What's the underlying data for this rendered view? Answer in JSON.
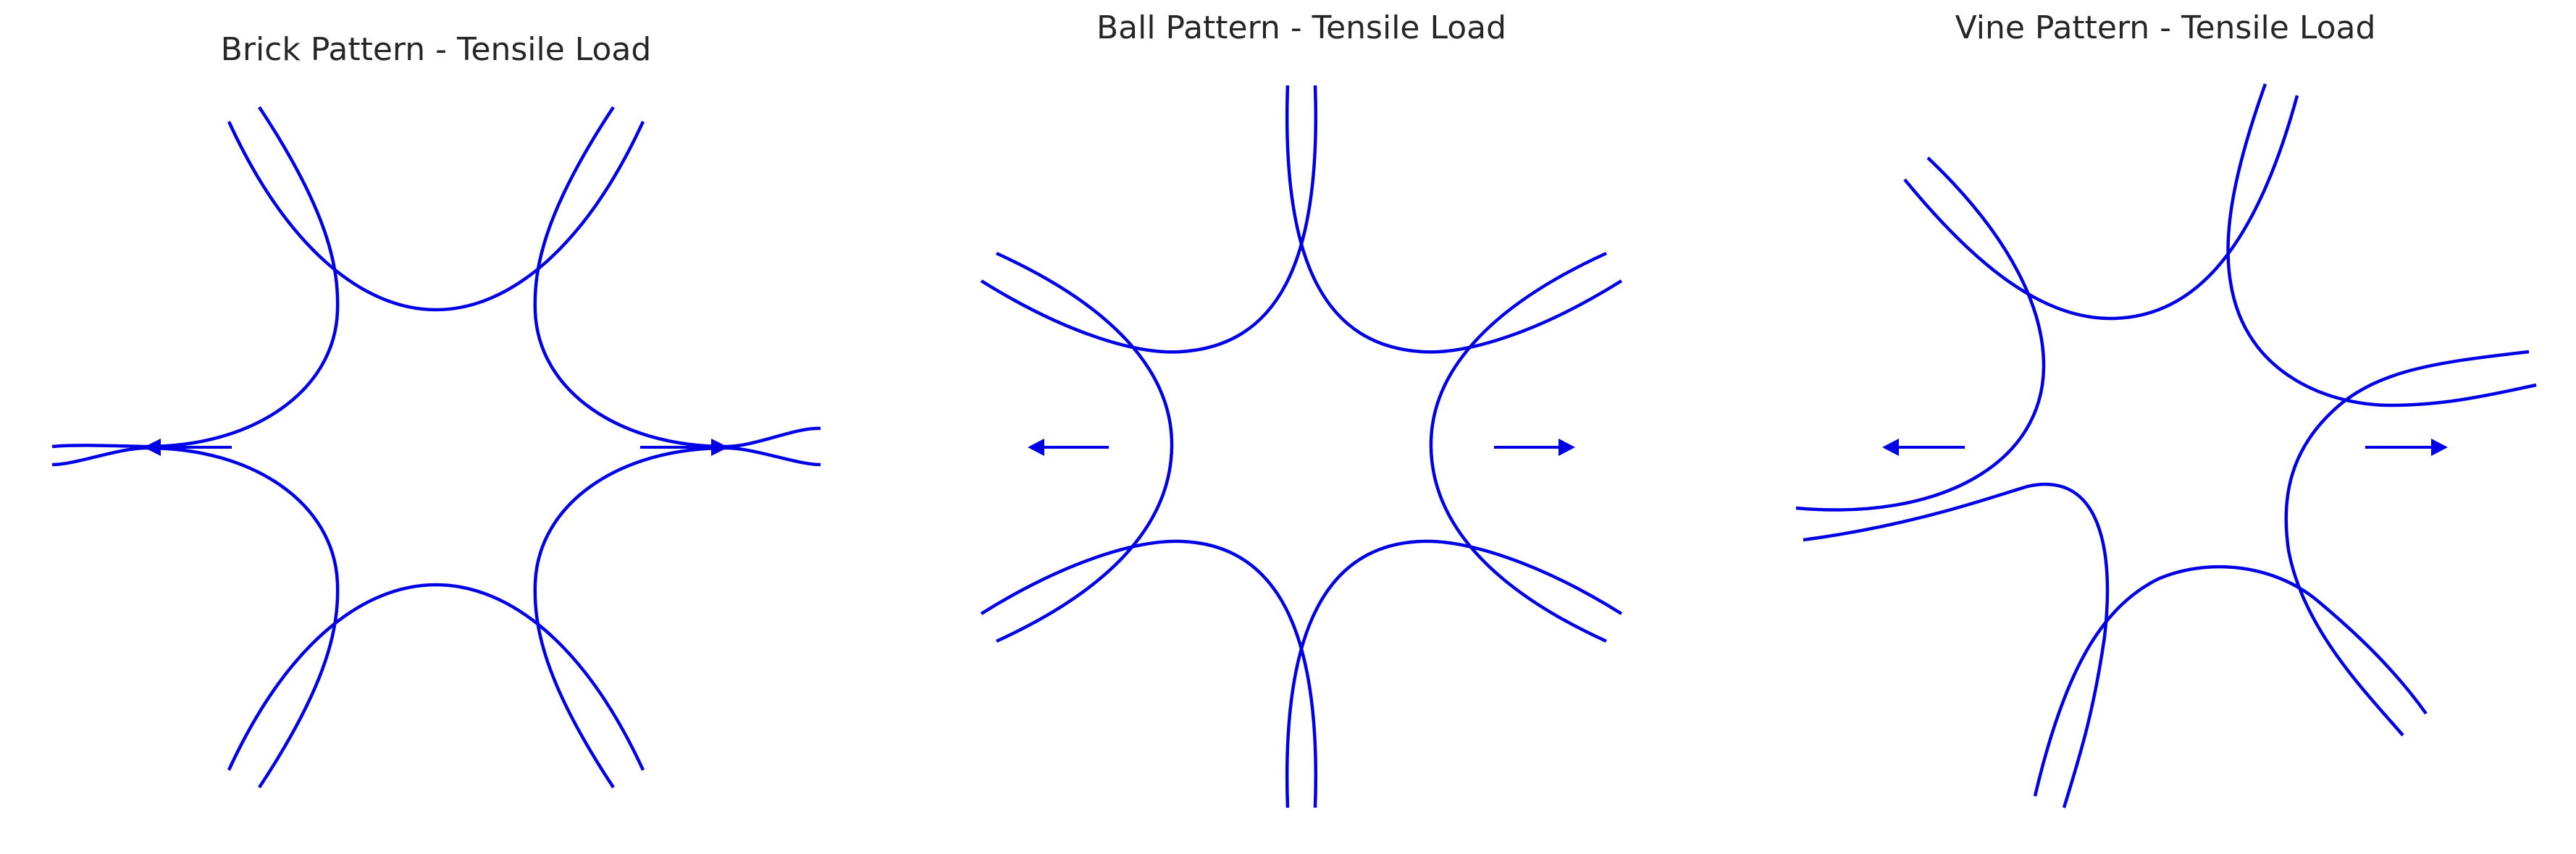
{
  "colors": {
    "line": "#0000e6",
    "arrow": "#0000e6",
    "title": "#262626",
    "background": "#ffffff"
  },
  "panels": [
    {
      "title": "Brick Pattern - Tensile Load",
      "pattern": "brick",
      "load_direction": "horizontal-outward"
    },
    {
      "title": "Ball Pattern - Tensile Load",
      "pattern": "ball",
      "load_direction": "horizontal-outward"
    },
    {
      "title": "Vine Pattern - Tensile Load",
      "pattern": "vine",
      "load_direction": "horizontal-outward"
    }
  ]
}
